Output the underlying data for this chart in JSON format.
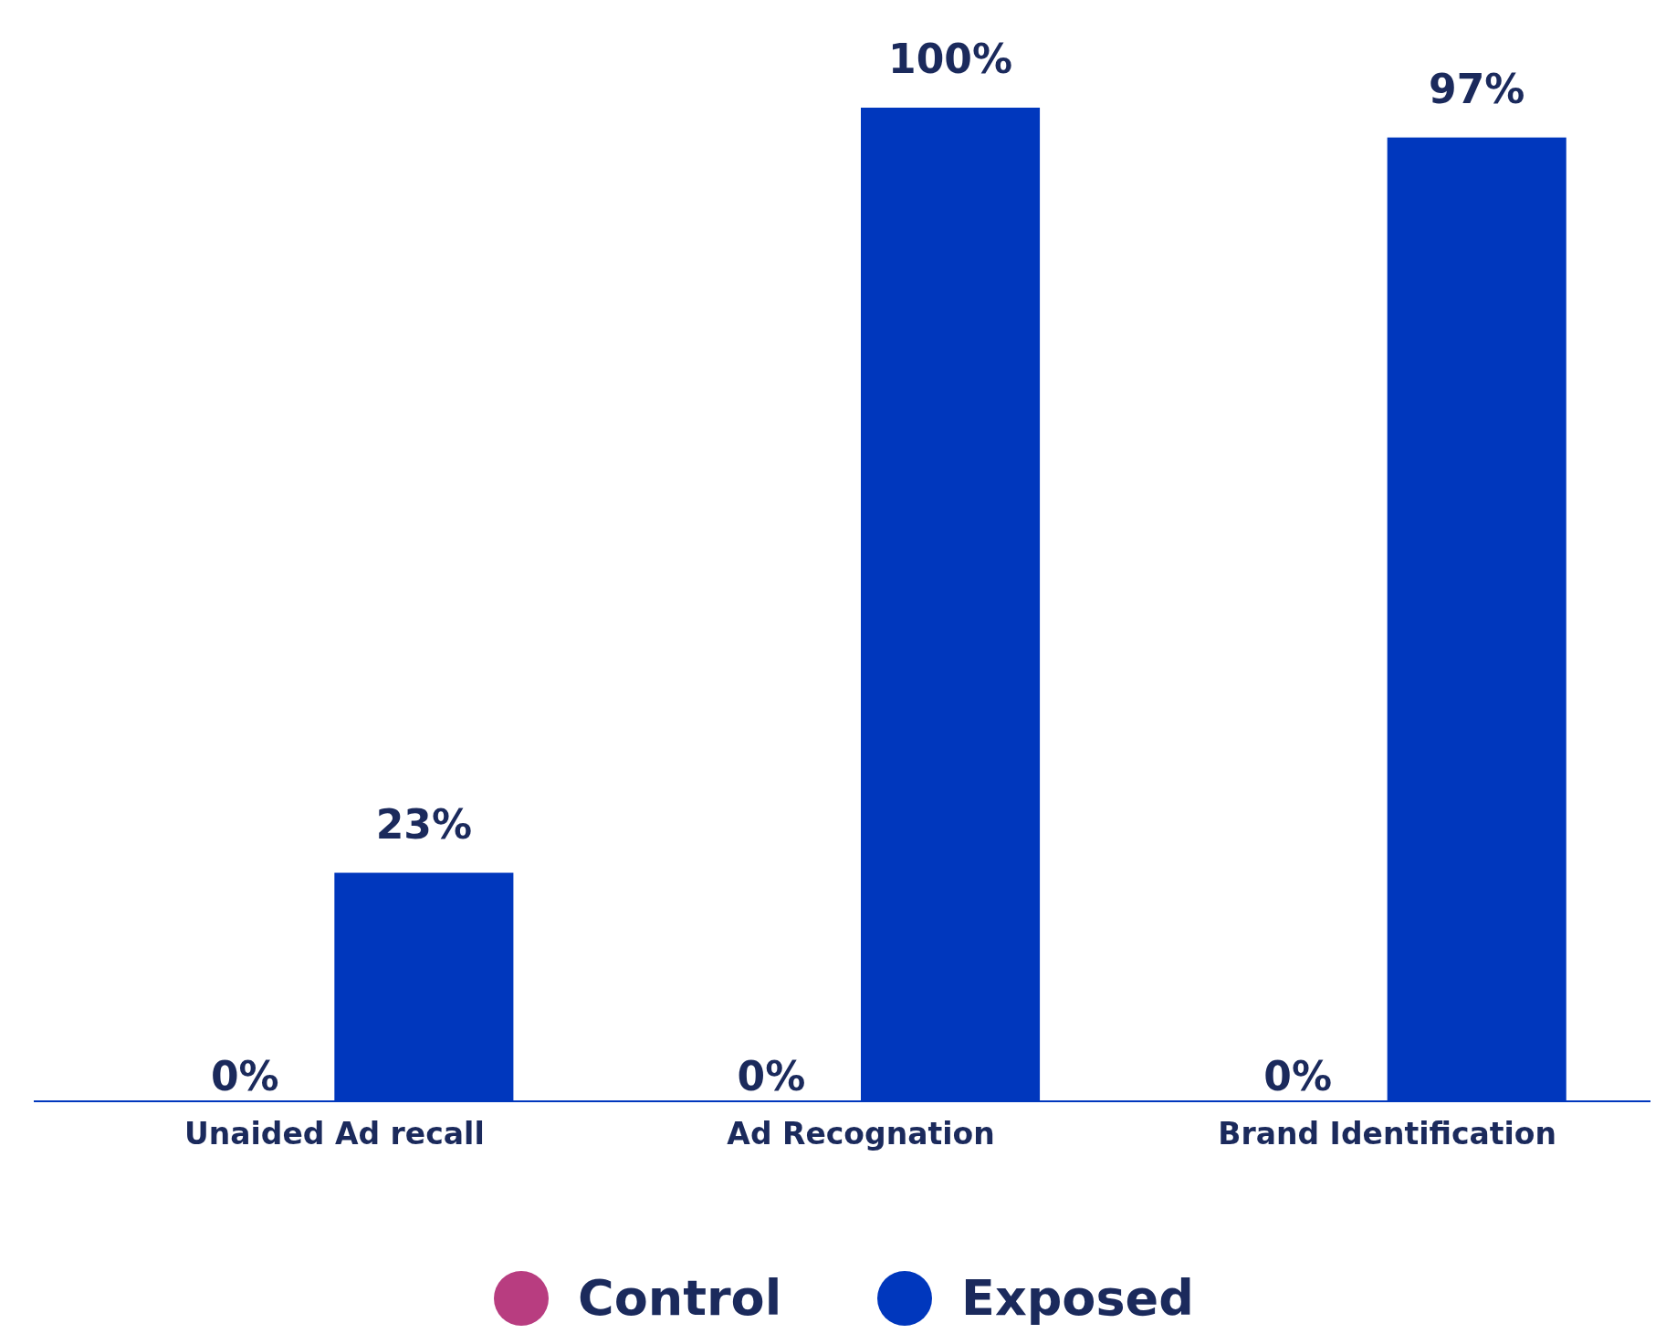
{
  "chart_data": {
    "type": "bar",
    "categories": [
      "Unaided Ad recall",
      "Ad Recognation",
      "Brand Identification"
    ],
    "series": [
      {
        "name": "Control",
        "color": "#b83d80",
        "values": [
          0,
          0,
          0
        ],
        "value_labels": [
          "0%",
          "0%",
          "0%"
        ]
      },
      {
        "name": "Exposed",
        "color": "#0037bd",
        "values": [
          23,
          100,
          97
        ],
        "value_labels": [
          "23%",
          "100%",
          "97%"
        ]
      }
    ],
    "legend": "bottom",
    "grid": false
  }
}
